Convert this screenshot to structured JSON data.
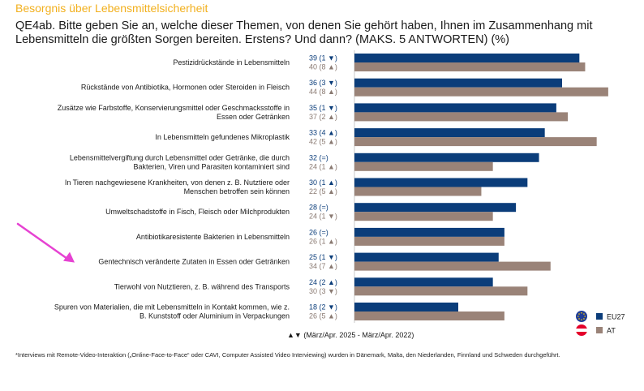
{
  "header": {
    "supertitle": "Besorgnis über Lebensmittelsicherheit",
    "question": "QE4ab. Bitte geben Sie an, welche dieser Themen, von denen Sie gehört haben, Ihnen im Zusammenhang mit Lebensmitteln die größten Sorgen bereiten. Erstens? Und dann? (MAKS. 5 ANTWORTEN) (%)"
  },
  "chart_data": {
    "type": "bar",
    "orientation": "horizontal",
    "title": "QE4ab. Bitte geben Sie an, welche dieser Themen, von denen Sie gehört haben, Ihnen im Zusammenhang mit Lebensmitteln die größten Sorgen bereiten. Erstens? Und dann? (MAKS. 5 ANTWORTEN) (%)",
    "xlim": [
      0,
      45
    ],
    "categories": [
      [
        "Pestizidrückstände in Lebensmitteln"
      ],
      [
        "Rückstände von Antibiotika, Hormonen oder Steroiden in Fleisch"
      ],
      [
        "Zusätze wie Farbstoffe, Konservierungsmittel oder Geschmacksstoffe in",
        "Essen oder Getränken"
      ],
      [
        "In Lebensmitteln gefundenes Mikroplastik"
      ],
      [
        "Lebensmittelvergiftung durch Lebensmittel oder Getränke, die durch",
        "Bakterien, Viren und Parasiten kontaminiert sind"
      ],
      [
        "In Tieren nachgewiesene Krankheiten, von denen z. B. Nutztiere oder",
        "Menschen betroffen sein können"
      ],
      [
        "Umweltschadstoffe in Fisch, Fleisch oder Milchprodukten"
      ],
      [
        "Antibiotikaresistente Bakterien in Lebensmitteln"
      ],
      [
        "Gentechnisch veränderte Zutaten in Essen oder Getränken"
      ],
      [
        "Tierwohl von Nutztieren, z. B. während des Transports"
      ],
      [
        "Spuren von Materialien, die mit Lebensmitteln in Kontakt kommen, wie z.",
        "B. Kunststoff oder Aluminium in Verpackungen"
      ]
    ],
    "series": [
      {
        "name": "EU27",
        "color": "#0b3d7a",
        "values": [
          39,
          36,
          35,
          33,
          32,
          30,
          28,
          26,
          25,
          24,
          18
        ],
        "changes": [
          "1",
          "3",
          "1",
          "4",
          "=",
          "1",
          "=",
          "=",
          "1",
          "2",
          "2"
        ],
        "directions": [
          "down",
          "down",
          "down",
          "up",
          "none",
          "up",
          "none",
          "none",
          "down",
          "up",
          "down"
        ]
      },
      {
        "name": "AT",
        "color": "#9a8378",
        "values": [
          40,
          44,
          37,
          42,
          24,
          22,
          24,
          26,
          34,
          30,
          26
        ],
        "changes": [
          "8",
          "8",
          "2",
          "5",
          "1",
          "5",
          "1",
          "1",
          "7",
          "3",
          "5"
        ],
        "directions": [
          "up",
          "up",
          "up",
          "up",
          "up",
          "up",
          "down",
          "up",
          "up",
          "down",
          "up"
        ]
      }
    ],
    "legend": {
      "position": "bottom-right",
      "flags": [
        "eu-flag",
        "austria-flag"
      ],
      "austria_flag_colors": [
        "#e4002b",
        "#ffffff"
      ],
      "eu_flag_colors": [
        "#1f3d99",
        "#ffcc00"
      ]
    },
    "change_note": "(März/Apr. 2025 - März/Apr. 2022)",
    "annotation": {
      "type": "arrow",
      "color": "#e642d2",
      "target_category_index": 8
    }
  },
  "footnote": "*Interviews mit Remote-Video-Interaktion („Online-Face-to-Face“ oder CAVI, Computer Assisted Video Interviewing) wurden in Dänemark, Malta, den Niederlanden, Finnland und Schweden durchgeführt."
}
